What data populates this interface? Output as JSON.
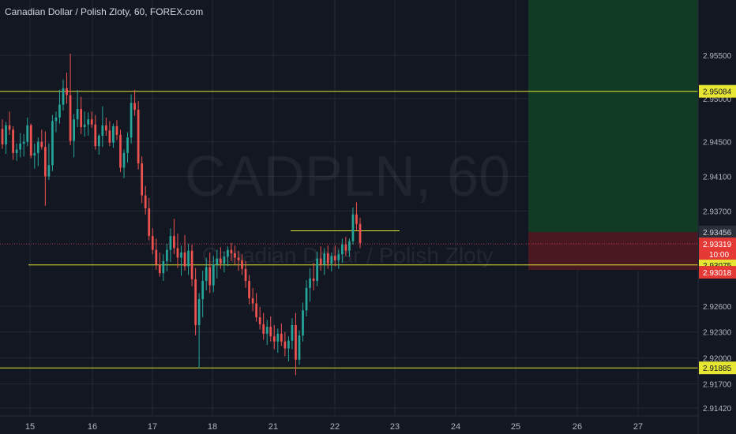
{
  "header": {
    "title": "Canadian Dollar / Polish Zloty, 60, FOREX.com"
  },
  "watermark": {
    "symbol": "CADPLN, 60",
    "name": "Canadian Dollar / Polish Zloty"
  },
  "colors": {
    "background": "#131722",
    "grid": "#232838",
    "up": "#26a69a",
    "down": "#ef5350",
    "level_line": "#e6e633",
    "profit_zone": "#123b26",
    "loss_zone": "#4a1820",
    "price_line": "#c03a4a",
    "axis_text": "#b2b5be"
  },
  "chart_data": {
    "type": "candlestick",
    "x_ticks": [
      "15",
      "16",
      "17",
      "18",
      "21",
      "22",
      "23",
      "24",
      "25",
      "26",
      "27"
    ],
    "y_ticks": [
      "2.95500",
      "2.95000",
      "2.94500",
      "2.94100",
      "2.93700",
      "2.92600",
      "2.92300",
      "2.92000",
      "2.91700",
      "2.91420"
    ],
    "ylim": [
      2.9133,
      2.9614
    ],
    "horizontal_levels": [
      {
        "price": 2.95084,
        "label": "2.95084",
        "color": "#e6e633"
      },
      {
        "price": 2.93075,
        "label": "2.93075",
        "color": "#e6e633"
      },
      {
        "price": 2.91885,
        "label": "2.91885",
        "color": "#e6e633"
      },
      {
        "price": 2.93456,
        "label": "2.93456",
        "color": "#2a2e39"
      }
    ],
    "current_price": {
      "price": 2.93319,
      "label": "2.93319",
      "countdown": "10:00"
    },
    "stop_price": {
      "price": 2.93018,
      "label": "2.93018"
    },
    "position": {
      "entry": 2.93456,
      "target_top": 2.9614,
      "stop": 2.93018
    },
    "short_level": {
      "price": 2.9347
    },
    "candles": [
      [
        2.9465,
        2.9476,
        2.9442,
        2.9447
      ],
      [
        2.9447,
        2.9473,
        2.9436,
        2.9469
      ],
      [
        2.9469,
        2.9485,
        2.9458,
        2.9464
      ],
      [
        2.9464,
        2.9468,
        2.9429,
        2.9437
      ],
      [
        2.9437,
        2.9448,
        2.9428,
        2.9441
      ],
      [
        2.9441,
        2.946,
        2.9432,
        2.9448
      ],
      [
        2.9448,
        2.9459,
        2.9433,
        2.945
      ],
      [
        2.945,
        2.9478,
        2.9445,
        2.9469
      ],
      [
        2.9469,
        2.9471,
        2.9431,
        2.9434
      ],
      [
        2.9434,
        2.9448,
        2.9419,
        2.9437
      ],
      [
        2.9437,
        2.9455,
        2.9422,
        2.945
      ],
      [
        2.945,
        2.9464,
        2.9441,
        2.9444
      ],
      [
        2.9444,
        2.9462,
        2.9376,
        2.941
      ],
      [
        2.941,
        2.9448,
        2.9406,
        2.9423
      ],
      [
        2.9423,
        2.9481,
        2.9416,
        2.9474
      ],
      [
        2.9474,
        2.9485,
        2.9461,
        2.9478
      ],
      [
        2.9478,
        2.951,
        2.9471,
        2.9493
      ],
      [
        2.9493,
        2.9522,
        2.9486,
        2.9512
      ],
      [
        2.9512,
        2.953,
        2.9494,
        2.9504
      ],
      [
        2.9504,
        2.9552,
        2.9446,
        2.9451
      ],
      [
        2.9451,
        2.9482,
        2.9432,
        2.9476
      ],
      [
        2.9476,
        2.951,
        2.9467,
        2.9488
      ],
      [
        2.9488,
        2.9502,
        2.9459,
        2.9467
      ],
      [
        2.9467,
        2.9485,
        2.9456,
        2.947
      ],
      [
        2.947,
        2.9484,
        2.9457,
        2.9476
      ],
      [
        2.9476,
        2.9485,
        2.9466,
        2.947
      ],
      [
        2.947,
        2.9481,
        2.9441,
        2.9445
      ],
      [
        2.9445,
        2.9459,
        2.9435,
        2.9457
      ],
      [
        2.9457,
        2.9491,
        2.9444,
        2.9469
      ],
      [
        2.9469,
        2.9478,
        2.9457,
        2.9463
      ],
      [
        2.9463,
        2.9474,
        2.9445,
        2.9449
      ],
      [
        2.9449,
        2.9471,
        2.9443,
        2.9468
      ],
      [
        2.9468,
        2.9475,
        2.9452,
        2.9458
      ],
      [
        2.9458,
        2.9464,
        2.9415,
        2.942
      ],
      [
        2.942,
        2.9441,
        2.9408,
        2.9437
      ],
      [
        2.9437,
        2.9461,
        2.9426,
        2.9455
      ],
      [
        2.9455,
        2.9505,
        2.9448,
        2.9495
      ],
      [
        2.9495,
        2.951,
        2.948,
        2.9487
      ],
      [
        2.9487,
        2.9497,
        2.9418,
        2.9425
      ],
      [
        2.9425,
        2.9433,
        2.9379,
        2.9388
      ],
      [
        2.9388,
        2.9399,
        2.9366,
        2.9373
      ],
      [
        2.9373,
        2.9385,
        2.9336,
        2.9341
      ],
      [
        2.9341,
        2.935,
        2.932,
        2.9325
      ],
      [
        2.9325,
        2.9338,
        2.9302,
        2.9308
      ],
      [
        2.9308,
        2.9322,
        2.9294,
        2.9298
      ],
      [
        2.9298,
        2.932,
        2.9289,
        2.9312
      ],
      [
        2.9312,
        2.9332,
        2.93,
        2.9325
      ],
      [
        2.9325,
        2.935,
        2.9311,
        2.9341
      ],
      [
        2.9341,
        2.9361,
        2.932,
        2.9327
      ],
      [
        2.9327,
        2.9344,
        2.9304,
        2.9316
      ],
      [
        2.9316,
        2.933,
        2.9295,
        2.9322
      ],
      [
        2.9322,
        2.9342,
        2.9301,
        2.9306
      ],
      [
        2.9306,
        2.9332,
        2.9296,
        2.9324
      ],
      [
        2.9324,
        2.9331,
        2.9283,
        2.9291
      ],
      [
        2.9291,
        2.9304,
        2.9226,
        2.9238
      ],
      [
        2.9238,
        2.9275,
        2.9188,
        2.9268
      ],
      [
        2.9268,
        2.9301,
        2.9247,
        2.9289
      ],
      [
        2.9289,
        2.9316,
        2.9278,
        2.9305
      ],
      [
        2.9305,
        2.9322,
        2.9275,
        2.9284
      ],
      [
        2.9284,
        2.9318,
        2.9276,
        2.9308
      ],
      [
        2.9308,
        2.9325,
        2.9292,
        2.9315
      ],
      [
        2.9315,
        2.9328,
        2.9303,
        2.9309
      ],
      [
        2.9309,
        2.9323,
        2.9299,
        2.9317
      ],
      [
        2.9317,
        2.9329,
        2.9306,
        2.9325
      ],
      [
        2.9325,
        2.9333,
        2.9312,
        2.9321
      ],
      [
        2.9321,
        2.933,
        2.9308,
        2.9316
      ],
      [
        2.9316,
        2.9324,
        2.9301,
        2.9313
      ],
      [
        2.9313,
        2.932,
        2.9296,
        2.9303
      ],
      [
        2.9303,
        2.9312,
        2.9281,
        2.9289
      ],
      [
        2.9289,
        2.9296,
        2.9262,
        2.9269
      ],
      [
        2.9269,
        2.9281,
        2.9254,
        2.9263
      ],
      [
        2.9263,
        2.9275,
        2.9242,
        2.9247
      ],
      [
        2.9247,
        2.9259,
        2.9233,
        2.9239
      ],
      [
        2.9239,
        2.9252,
        2.9221,
        2.9228
      ],
      [
        2.9228,
        2.9244,
        2.9215,
        2.9236
      ],
      [
        2.9236,
        2.9248,
        2.9219,
        2.9225
      ],
      [
        2.9225,
        2.9238,
        2.921,
        2.9219
      ],
      [
        2.9219,
        2.9234,
        2.9206,
        2.9228
      ],
      [
        2.9228,
        2.924,
        2.9214,
        2.9219
      ],
      [
        2.9219,
        2.923,
        2.9202,
        2.9211
      ],
      [
        2.9211,
        2.9225,
        2.9196,
        2.922
      ],
      [
        2.922,
        2.9246,
        2.921,
        2.9238
      ],
      [
        2.9238,
        2.9252,
        2.918,
        2.9198
      ],
      [
        2.9198,
        2.9232,
        2.9192,
        2.9226
      ],
      [
        2.9226,
        2.9264,
        2.9219,
        2.9255
      ],
      [
        2.9255,
        2.929,
        2.9248,
        2.9281
      ],
      [
        2.9281,
        2.9304,
        2.9265,
        2.9292
      ],
      [
        2.9292,
        2.931,
        2.9278,
        2.9289
      ],
      [
        2.9289,
        2.9323,
        2.9283,
        2.9315
      ],
      [
        2.9315,
        2.9329,
        2.9301,
        2.9308
      ],
      [
        2.9308,
        2.9327,
        2.9296,
        2.9321
      ],
      [
        2.9321,
        2.933,
        2.9303,
        2.9309
      ],
      [
        2.9309,
        2.9322,
        2.93,
        2.9318
      ],
      [
        2.9318,
        2.933,
        2.9306,
        2.9313
      ],
      [
        2.9313,
        2.9325,
        2.9303,
        2.932
      ],
      [
        2.932,
        2.9338,
        2.931,
        2.9331
      ],
      [
        2.9331,
        2.934,
        2.9318,
        2.9324
      ],
      [
        2.9324,
        2.9338,
        2.9317,
        2.9335
      ],
      [
        2.9335,
        2.9374,
        2.9331,
        2.9366
      ],
      [
        2.9366,
        2.938,
        2.9348,
        2.9355
      ],
      [
        2.9355,
        2.9362,
        2.9327,
        2.9333
      ]
    ]
  }
}
